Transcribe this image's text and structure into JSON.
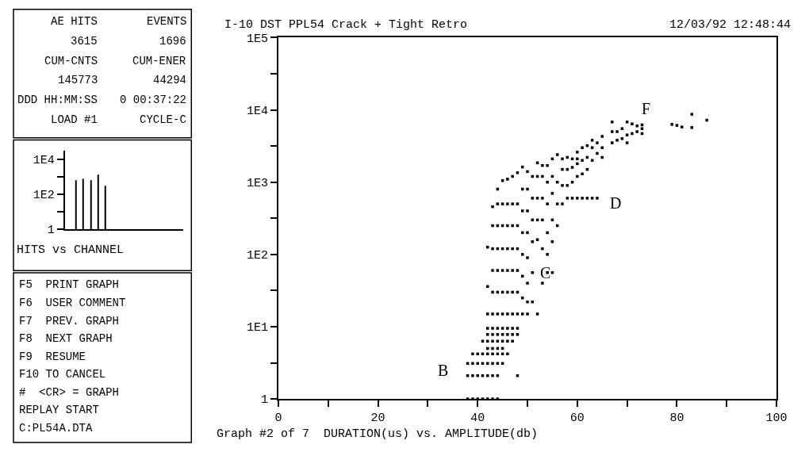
{
  "chart_data": [
    {
      "type": "other",
      "annotations": [
        "AE HITS",
        "EVENTS",
        "3615",
        "1696",
        "CUM-CNTS",
        "CUM-ENER",
        "145773",
        "44294",
        "DDD HH:MM:SS",
        "0 00:37:22",
        "LOAD #1",
        "CYCLE-C"
      ]
    },
    {
      "type": "bar",
      "xlabel": "HITS vs CHANNEL",
      "categories": [
        null,
        null,
        null,
        null,
        null,
        null,
        null,
        null,
        null,
        null,
        null,
        null,
        null,
        null,
        null,
        null
      ],
      "series": [
        {
          "color": "#000000",
          "values": [
            null,
            630,
            760,
            630,
            1300,
            300,
            null,
            null,
            null,
            null,
            null,
            null,
            null,
            null,
            null,
            null
          ]
        }
      ],
      "log": "y",
      "ylim": [
        1,
        30000
      ],
      "yticks": [
        1,
        {
          "value": 10,
          "label": null
        },
        {
          "value": 100,
          "label": "1E2"
        },
        {
          "value": 1000,
          "label": null
        },
        {
          "value": 10000,
          "label": "1E4"
        }
      ],
      "tick_labels": "y",
      "grid": false
    },
    {
      "type": "other",
      "annotations": [
        "F5  PRINT GRAPH",
        "F6  USER COMMENT",
        "F7  PREV. GRAPH",
        "F8  NEXT GRAPH",
        "F9  RESUME",
        "F10 TO CANCEL",
        "#  <CR> = GRAPH",
        "REPLAY START",
        "C:PL54A.DTA"
      ]
    },
    {
      "type": "scatter",
      "title": "I-10 DST PPL54 Crack + Tight Retro",
      "xlabel": "Graph #2 of 7  DURATION(us) vs. AMPLITUDE(db)",
      "annotations": [
        "12/03/92 12:48:44",
        "B",
        {
          "text": "C",
          "x": 53.5,
          "y": 56
        },
        "D",
        "F"
      ],
      "series": [
        {
          "color": "#000000",
          "x": [
            38,
            38,
            38,
            39,
            39,
            39,
            39,
            40,
            40,
            40,
            40,
            41,
            41,
            41,
            41,
            41,
            42,
            42,
            42,
            42,
            42,
            42,
            42,
            42,
            42,
            42,
            42,
            43,
            43,
            43,
            43,
            43,
            43,
            43,
            43,
            43,
            43,
            43,
            43,
            43,
            43,
            44,
            44,
            44,
            44,
            44,
            44,
            44,
            44,
            44,
            44,
            44,
            44,
            44,
            44,
            44,
            45,
            45,
            45,
            45,
            45,
            45,
            45,
            45,
            45,
            45,
            45,
            45,
            45,
            46,
            46,
            46,
            46,
            46,
            46,
            46,
            46,
            46,
            46,
            46,
            47,
            47,
            47,
            47,
            47,
            47,
            47,
            47,
            47,
            47,
            48,
            48,
            48,
            48,
            48,
            48,
            48,
            48,
            48,
            48,
            49,
            49,
            49,
            49,
            49,
            49,
            49,
            49,
            50,
            50,
            50,
            50,
            50,
            50,
            50,
            50,
            51,
            51,
            51,
            51,
            51,
            51,
            52,
            52,
            52,
            52,
            52,
            52,
            53,
            53,
            53,
            53,
            53,
            53,
            54,
            54,
            54,
            54,
            54,
            54,
            55,
            55,
            55,
            55,
            55,
            55,
            56,
            56,
            56,
            56,
            57,
            57,
            57,
            57,
            58,
            58,
            58,
            58,
            59,
            59,
            59,
            59,
            60,
            60,
            60,
            60,
            60,
            61,
            61,
            61,
            61,
            62,
            62,
            62,
            62,
            63,
            63,
            63,
            63,
            64,
            64,
            64,
            65,
            65,
            65,
            67,
            67,
            67,
            68,
            68,
            69,
            69,
            70,
            70,
            70,
            71,
            71,
            72,
            72,
            73,
            73,
            73,
            79,
            80,
            81,
            83,
            83,
            86
          ],
          "values": [
            1,
            2.1,
            3.1,
            1,
            2.1,
            3.1,
            4.2,
            1,
            2.1,
            3.1,
            4.2,
            1,
            2.1,
            3.1,
            4.2,
            6.3,
            1,
            2.1,
            3.1,
            4.2,
            5,
            6.3,
            7.8,
            9.5,
            15,
            36,
            126,
            1,
            2.1,
            3.1,
            4.2,
            5,
            6.3,
            7.8,
            9.5,
            15,
            30,
            60,
            120,
            250,
            457,
            1,
            2.1,
            3.1,
            4.2,
            5,
            6.3,
            7.8,
            9.5,
            15,
            30,
            60,
            120,
            250,
            500,
            800,
            3.1,
            4.2,
            5,
            6.3,
            7.8,
            9.5,
            15,
            30,
            60,
            120,
            250,
            500,
            1050,
            4.2,
            6.3,
            7.8,
            9.5,
            15,
            30,
            60,
            120,
            250,
            500,
            1100,
            6.3,
            7.8,
            9.5,
            15,
            30,
            60,
            120,
            250,
            500,
            1200,
            2.1,
            7.8,
            9.5,
            15,
            30,
            60,
            120,
            250,
            500,
            1350,
            15,
            25,
            50,
            100,
            200,
            400,
            800,
            1620,
            15,
            22,
            40,
            90,
            200,
            400,
            800,
            1400,
            22,
            56,
            150,
            300,
            600,
            1200,
            15,
            160,
            300,
            600,
            1200,
            1850,
            40,
            120,
            300,
            600,
            1200,
            1700,
            100,
            56,
            200,
            500,
            1000,
            1700,
            56,
            150,
            300,
            700,
            1200,
            2100,
            250,
            500,
            1000,
            2400,
            500,
            900,
            1500,
            2100,
            600,
            900,
            1500,
            2200,
            600,
            1000,
            1600,
            2100,
            600,
            1200,
            1800,
            2100,
            2600,
            600,
            1300,
            2000,
            3000,
            600,
            1500,
            2200,
            3200,
            600,
            2000,
            3000,
            3800,
            600,
            2500,
            3500,
            2200,
            3000,
            4300,
            3500,
            5000,
            6800,
            3800,
            5000,
            4000,
            5500,
            3500,
            4500,
            6800,
            4700,
            6400,
            5000,
            6000,
            4700,
            5500,
            6200,
            6300,
            6100,
            5800,
            5700,
            8700,
            7200
          ]
        }
      ],
      "marker": "square",
      "log": "y",
      "grid": false,
      "xlim": [
        0,
        100
      ],
      "xticks": [
        0,
        {
          "value": 10,
          "label": null
        },
        20,
        {
          "value": 30,
          "label": null
        },
        40,
        {
          "value": 50,
          "label": null
        },
        60,
        {
          "value": 70,
          "label": null
        },
        80,
        {
          "value": 90,
          "label": null
        },
        100
      ],
      "ylim": [
        1,
        100000
      ],
      "yticks": [
        1,
        {
          "value": 3.16,
          "label": null
        },
        {
          "value": 10,
          "label": "1E1"
        },
        {
          "value": 31.6,
          "label": null
        },
        {
          "value": 100,
          "label": "1E2"
        },
        {
          "value": 316,
          "label": null
        },
        {
          "value": 1000,
          "label": "1E3"
        },
        {
          "value": 3160,
          "label": null
        },
        {
          "value": 10000,
          "label": "1E4"
        },
        {
          "value": 31600,
          "label": null
        },
        {
          "value": 100000,
          "label": "1E5"
        }
      ]
    }
  ]
}
